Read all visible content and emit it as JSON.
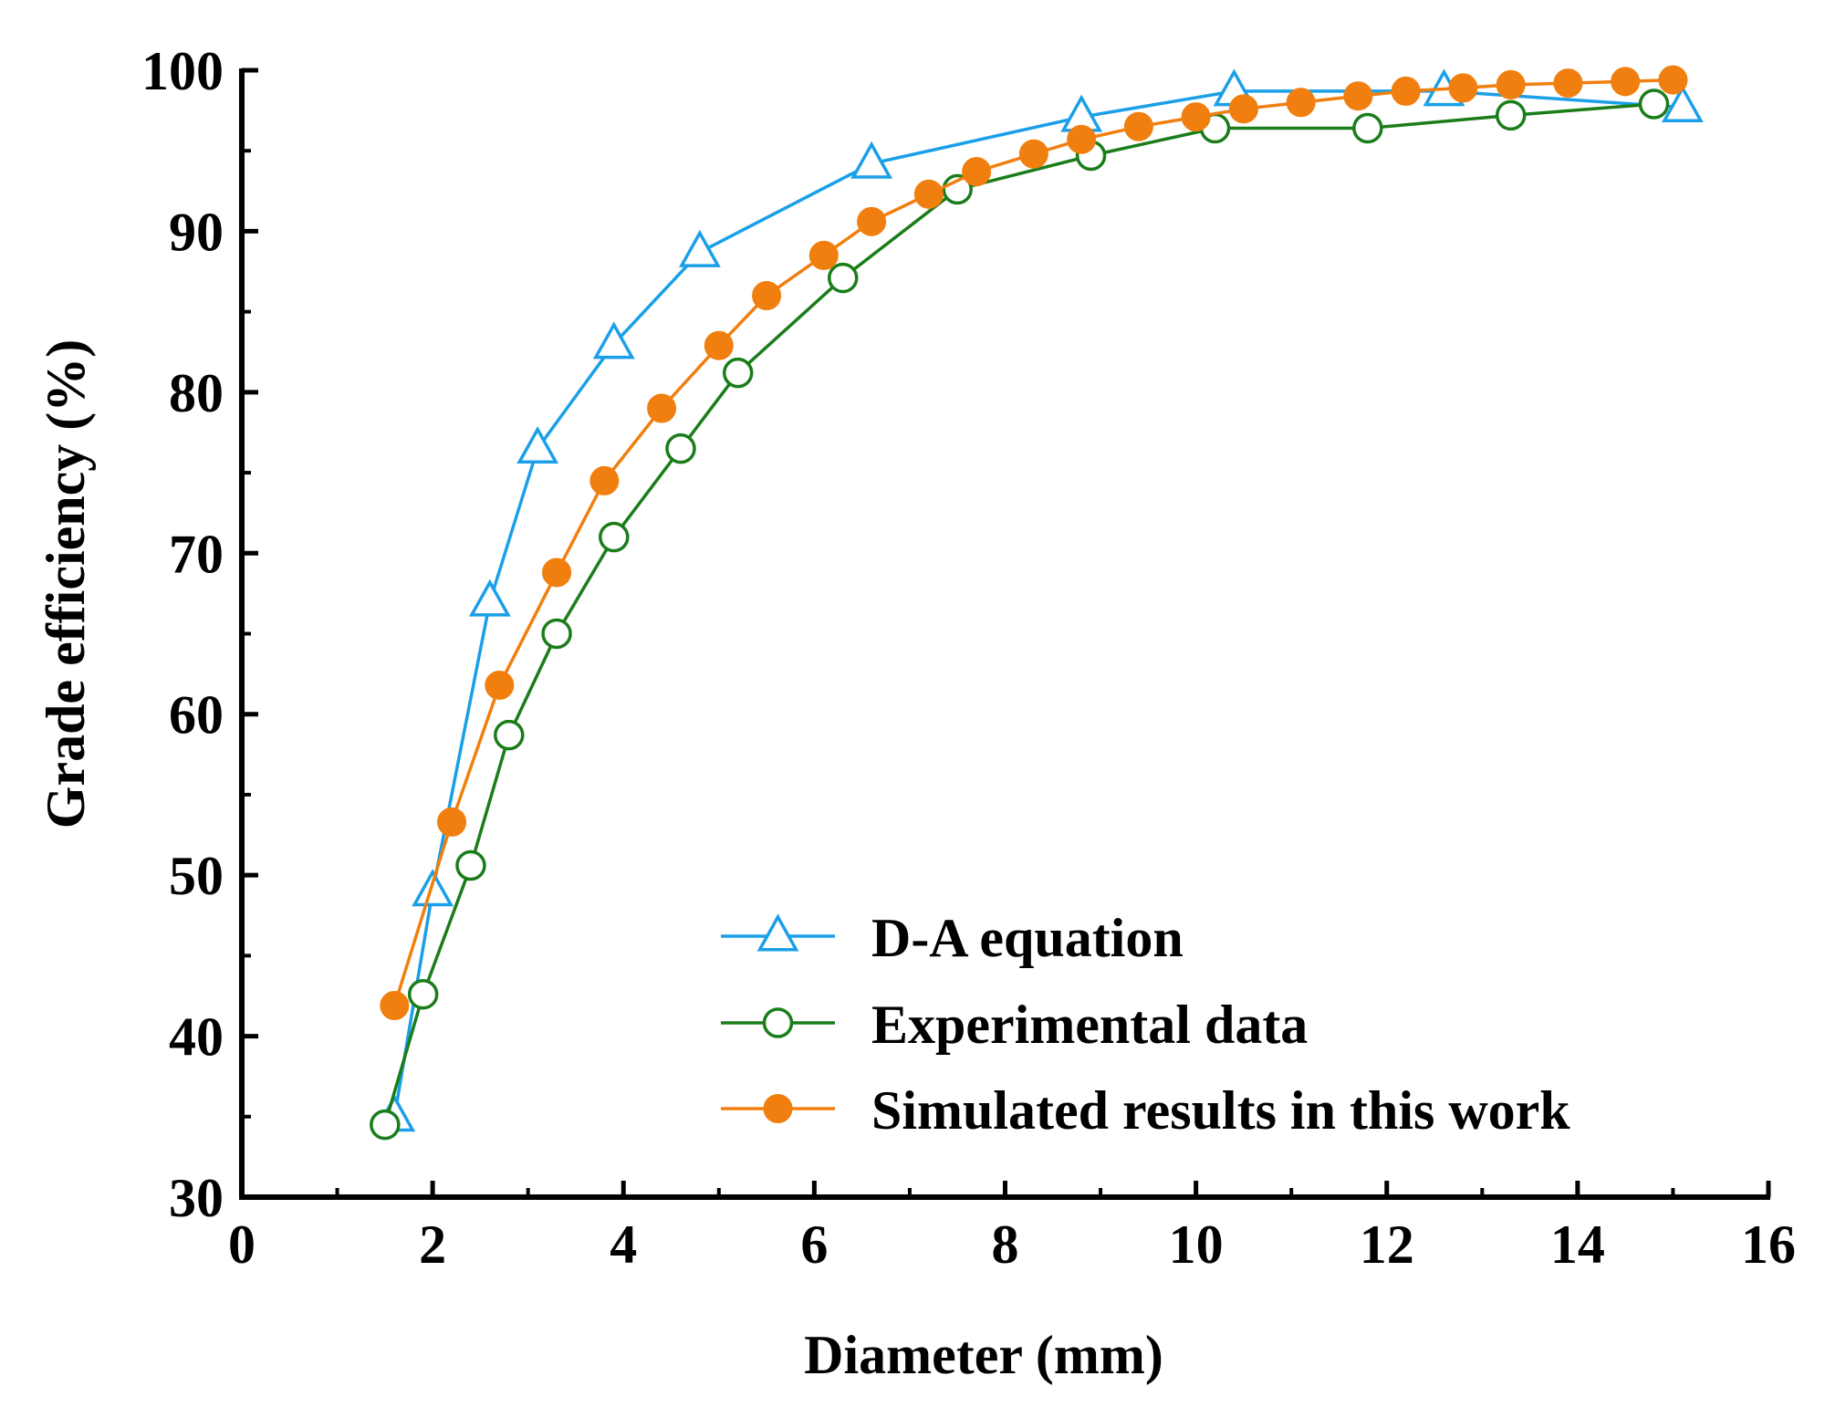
{
  "chart_data": {
    "type": "line",
    "title": "",
    "xlabel": "Diameter (mm)",
    "ylabel": "Grade efficiency (%)",
    "xlim": [
      0,
      16
    ],
    "ylim": [
      30,
      100
    ],
    "xticks": [
      0,
      2,
      4,
      6,
      8,
      10,
      12,
      14,
      16
    ],
    "yticks": [
      30,
      40,
      50,
      60,
      70,
      80,
      90,
      100
    ],
    "xtick_labels": [
      "0",
      "2",
      "4",
      "6",
      "8",
      "10",
      "12",
      "14",
      "16"
    ],
    "ytick_labels": [
      "30",
      "40",
      "50",
      "60",
      "70",
      "80",
      "90",
      "100"
    ],
    "grid": false,
    "legend_position": "bottom-right",
    "series": [
      {
        "name": "D-A equation",
        "color": "#1a9fe8",
        "marker": "triangle-open",
        "x": [
          1.6,
          2.0,
          2.6,
          3.1,
          3.9,
          4.8,
          6.6,
          8.8,
          10.4,
          12.6,
          15.1
        ],
        "y": [
          35.0,
          49.0,
          67.0,
          76.5,
          83.0,
          88.7,
          94.2,
          97.1,
          98.7,
          98.7,
          97.7
        ]
      },
      {
        "name": "Experimental data",
        "color": "#1a7d1a",
        "marker": "circle-open",
        "x": [
          1.5,
          1.9,
          2.4,
          2.8,
          3.3,
          3.9,
          4.6,
          5.2,
          6.3,
          7.5,
          8.9,
          10.2,
          11.8,
          13.3,
          14.8
        ],
        "y": [
          34.5,
          42.6,
          50.6,
          58.7,
          65.0,
          71.0,
          76.5,
          81.2,
          87.1,
          92.6,
          94.7,
          96.4,
          96.4,
          97.2,
          97.9
        ]
      },
      {
        "name": "Simulated results in this work",
        "color": "#f07f0f",
        "marker": "circle-filled",
        "x": [
          1.6,
          2.2,
          2.7,
          3.3,
          3.8,
          4.4,
          5.0,
          5.5,
          6.1,
          6.6,
          7.2,
          7.7,
          8.3,
          8.8,
          9.4,
          10.0,
          10.5,
          11.1,
          11.7,
          12.2,
          12.8,
          13.3,
          13.9,
          14.5,
          15.0
        ],
        "y": [
          41.9,
          53.3,
          61.8,
          68.8,
          74.5,
          79.0,
          82.9,
          86.0,
          88.5,
          90.6,
          92.3,
          93.7,
          94.8,
          95.7,
          96.5,
          97.1,
          97.6,
          98.0,
          98.4,
          98.7,
          98.9,
          99.1,
          99.2,
          99.3,
          99.4
        ]
      }
    ]
  }
}
